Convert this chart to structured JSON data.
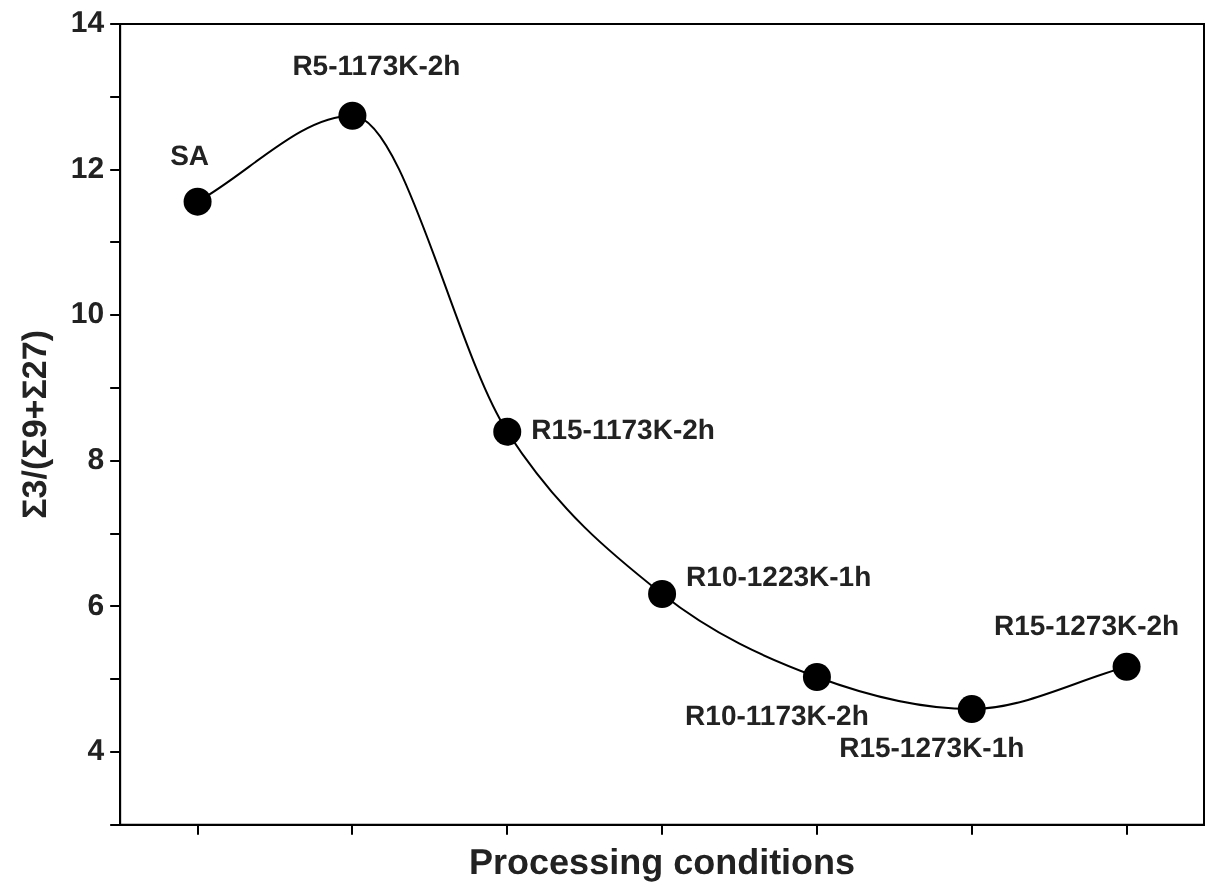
{
  "chart_data": {
    "type": "line",
    "xlabel": "Processing conditions",
    "ylabel": "Σ3/(Σ9+Σ27)",
    "categories": [
      null,
      null,
      null,
      null,
      null,
      null,
      null
    ],
    "values": [
      11.56,
      12.74,
      8.4,
      6.17,
      5.03,
      4.59,
      5.17
    ],
    "color": "#000000",
    "marker": "circle",
    "grid": false,
    "legend": false,
    "tick_labels": "y",
    "ylim": [
      3,
      14
    ],
    "yticks": [
      {
        "value": 3,
        "label": null
      },
      4,
      {
        "value": 5,
        "label": null
      },
      6,
      {
        "value": 7,
        "label": null
      },
      8,
      {
        "value": 9,
        "label": null
      },
      10,
      {
        "value": 11,
        "label": null
      },
      12,
      {
        "value": 13,
        "label": null
      },
      14
    ],
    "annotations": [
      "SA",
      "R5-1173K-2h",
      "R15-1173K-2h",
      "R10-1223K-1h",
      "R10-1173K-2h",
      "R15-1273K-1h",
      "R15-1273K-2h"
    ]
  }
}
